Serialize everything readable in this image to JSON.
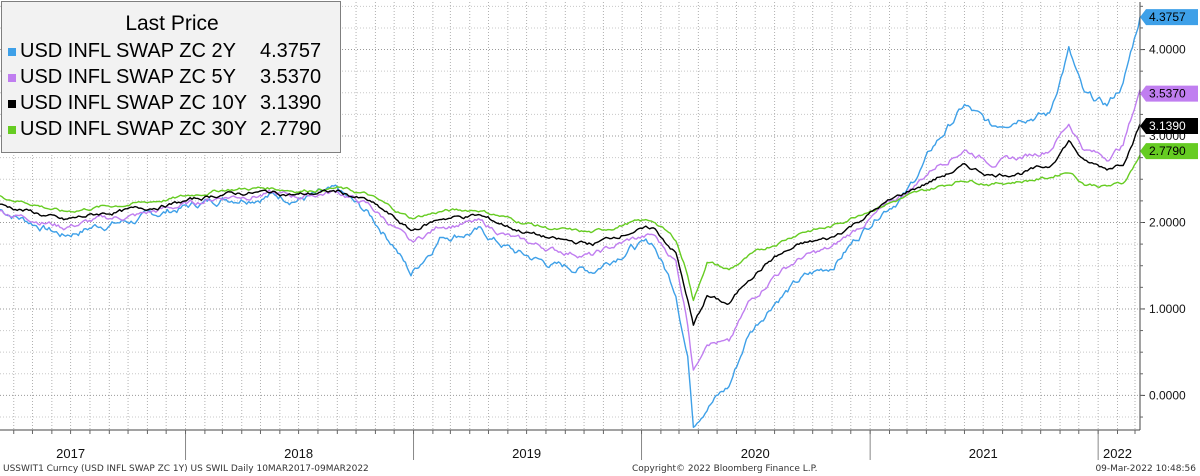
{
  "legend": {
    "title": "Last Price",
    "entries": [
      {
        "name": "USD INFL SWAP ZC 2Y",
        "value": "4.3757",
        "color": "#3ea0e8"
      },
      {
        "name": "USD INFL SWAP ZC 5Y",
        "value": "3.5370",
        "color": "#c07ef0"
      },
      {
        "name": "USD INFL SWAP ZC 10Y",
        "value": "3.1390",
        "color": "#000000"
      },
      {
        "name": "USD INFL SWAP ZC 30Y",
        "value": "2.7790",
        "color": "#66cc22"
      }
    ]
  },
  "footer": {
    "left": "USSWIT1 Curncy (USD INFL SWAP ZC 1Y) US SWIL  Daily 10MAR2017-09MAR2022",
    "center": "Copyright© 2022 Bloomberg Finance L.P.",
    "right": "09-Mar-2022 10:48:56"
  },
  "chart_data": {
    "type": "line",
    "x_range": [
      "2017-03-10",
      "2022-03-09"
    ],
    "ylim": [
      -0.4,
      4.55
    ],
    "y_axis_side": "right",
    "grid": true,
    "y_ticks": [
      0,
      1,
      2,
      3,
      4
    ],
    "y_tick_labels": [
      "0.0000",
      "1.0000",
      "2.0000",
      "3.0000",
      "4.0000"
    ],
    "x_tick_labels": [
      "2017",
      "2018",
      "2019",
      "2020",
      "2021",
      "2022"
    ],
    "x_tick_label_dates": [
      "2017-07-01",
      "2018-07-01",
      "2019-07-01",
      "2020-07-01",
      "2021-07-01",
      "2022-02-01"
    ],
    "year_boundaries": [
      "2018-01-01",
      "2019-01-01",
      "2020-01-01",
      "2021-01-01",
      "2022-01-01"
    ],
    "series": [
      {
        "name": "USD INFL SWAP ZC 2Y",
        "color": "#3ea0e8",
        "last_value": "4.3757",
        "points": [
          [
            "2017-03-10",
            2.15
          ],
          [
            "2017-05-01",
            2.0
          ],
          [
            "2017-06-20",
            1.85
          ],
          [
            "2017-08-15",
            1.97
          ],
          [
            "2017-10-15",
            2.03
          ],
          [
            "2017-12-15",
            2.15
          ],
          [
            "2018-03-01",
            2.28
          ],
          [
            "2018-05-15",
            2.32
          ],
          [
            "2018-07-01",
            2.28
          ],
          [
            "2018-09-01",
            2.35
          ],
          [
            "2018-10-20",
            2.1
          ],
          [
            "2018-12-01",
            1.75
          ],
          [
            "2018-12-28",
            1.4
          ],
          [
            "2019-02-15",
            1.85
          ],
          [
            "2019-04-15",
            1.9
          ],
          [
            "2019-06-15",
            1.65
          ],
          [
            "2019-08-15",
            1.5
          ],
          [
            "2019-10-15",
            1.45
          ],
          [
            "2019-12-15",
            1.72
          ],
          [
            "2020-01-20",
            1.75
          ],
          [
            "2020-02-25",
            1.2
          ],
          [
            "2020-03-15",
            0.45
          ],
          [
            "2020-03-24",
            -0.3
          ],
          [
            "2020-04-15",
            -0.1
          ],
          [
            "2020-05-20",
            0.1
          ],
          [
            "2020-06-20",
            0.7
          ],
          [
            "2020-08-01",
            1.1
          ],
          [
            "2020-09-15",
            1.35
          ],
          [
            "2020-11-01",
            1.5
          ],
          [
            "2020-12-20",
            1.9
          ],
          [
            "2021-01-20",
            2.15
          ],
          [
            "2021-03-01",
            2.35
          ],
          [
            "2021-04-15",
            2.9
          ],
          [
            "2021-06-01",
            3.35
          ],
          [
            "2021-07-15",
            3.1
          ],
          [
            "2021-09-01",
            3.25
          ],
          [
            "2021-10-15",
            3.25
          ],
          [
            "2021-11-15",
            4.0
          ],
          [
            "2021-12-10",
            3.45
          ],
          [
            "2022-01-15",
            3.35
          ],
          [
            "2022-02-10",
            3.6
          ],
          [
            "2022-03-09",
            4.3757
          ]
        ]
      },
      {
        "name": "USD INFL SWAP ZC 5Y",
        "color": "#c07ef0",
        "last_value": "3.5370",
        "points": [
          [
            "2017-03-10",
            2.12
          ],
          [
            "2017-05-01",
            2.05
          ],
          [
            "2017-06-20",
            1.95
          ],
          [
            "2017-08-15",
            2.03
          ],
          [
            "2017-10-15",
            2.08
          ],
          [
            "2017-12-15",
            2.18
          ],
          [
            "2018-03-01",
            2.3
          ],
          [
            "2018-05-15",
            2.33
          ],
          [
            "2018-07-01",
            2.3
          ],
          [
            "2018-09-01",
            2.36
          ],
          [
            "2018-10-20",
            2.2
          ],
          [
            "2018-12-01",
            1.95
          ],
          [
            "2018-12-28",
            1.75
          ],
          [
            "2019-02-15",
            1.97
          ],
          [
            "2019-04-15",
            2.0
          ],
          [
            "2019-06-15",
            1.8
          ],
          [
            "2019-08-15",
            1.68
          ],
          [
            "2019-10-15",
            1.62
          ],
          [
            "2019-12-15",
            1.8
          ],
          [
            "2020-01-20",
            1.85
          ],
          [
            "2020-02-25",
            1.55
          ],
          [
            "2020-03-15",
            0.85
          ],
          [
            "2020-03-24",
            0.3
          ],
          [
            "2020-04-15",
            0.65
          ],
          [
            "2020-05-20",
            0.6
          ],
          [
            "2020-06-20",
            1.05
          ],
          [
            "2020-08-01",
            1.4
          ],
          [
            "2020-09-15",
            1.6
          ],
          [
            "2020-11-01",
            1.7
          ],
          [
            "2020-12-20",
            1.98
          ],
          [
            "2021-01-20",
            2.15
          ],
          [
            "2021-03-01",
            2.35
          ],
          [
            "2021-04-15",
            2.65
          ],
          [
            "2021-06-01",
            2.85
          ],
          [
            "2021-07-15",
            2.7
          ],
          [
            "2021-09-01",
            2.75
          ],
          [
            "2021-10-15",
            2.85
          ],
          [
            "2021-11-15",
            3.15
          ],
          [
            "2021-12-10",
            2.85
          ],
          [
            "2022-01-15",
            2.75
          ],
          [
            "2022-02-10",
            2.9
          ],
          [
            "2022-03-09",
            3.537
          ]
        ]
      },
      {
        "name": "USD INFL SWAP ZC 10Y",
        "color": "#000000",
        "last_value": "3.1390",
        "points": [
          [
            "2017-03-10",
            2.2
          ],
          [
            "2017-05-01",
            2.12
          ],
          [
            "2017-06-20",
            2.02
          ],
          [
            "2017-08-15",
            2.1
          ],
          [
            "2017-10-15",
            2.15
          ],
          [
            "2017-12-15",
            2.22
          ],
          [
            "2018-03-01",
            2.33
          ],
          [
            "2018-05-15",
            2.35
          ],
          [
            "2018-07-01",
            2.32
          ],
          [
            "2018-09-01",
            2.36
          ],
          [
            "2018-10-20",
            2.25
          ],
          [
            "2018-12-01",
            2.05
          ],
          [
            "2018-12-28",
            1.9
          ],
          [
            "2019-02-15",
            2.05
          ],
          [
            "2019-04-15",
            2.08
          ],
          [
            "2019-06-15",
            1.92
          ],
          [
            "2019-08-15",
            1.8
          ],
          [
            "2019-10-15",
            1.75
          ],
          [
            "2019-12-15",
            1.9
          ],
          [
            "2020-01-20",
            1.93
          ],
          [
            "2020-02-25",
            1.65
          ],
          [
            "2020-03-15",
            1.1
          ],
          [
            "2020-03-24",
            0.8
          ],
          [
            "2020-04-15",
            1.15
          ],
          [
            "2020-05-20",
            1.05
          ],
          [
            "2020-06-20",
            1.35
          ],
          [
            "2020-08-01",
            1.6
          ],
          [
            "2020-09-15",
            1.75
          ],
          [
            "2020-11-01",
            1.82
          ],
          [
            "2020-12-20",
            2.05
          ],
          [
            "2021-01-20",
            2.2
          ],
          [
            "2021-03-01",
            2.35
          ],
          [
            "2021-04-15",
            2.5
          ],
          [
            "2021-06-01",
            2.65
          ],
          [
            "2021-07-15",
            2.55
          ],
          [
            "2021-09-01",
            2.58
          ],
          [
            "2021-10-15",
            2.65
          ],
          [
            "2021-11-15",
            2.95
          ],
          [
            "2021-12-10",
            2.7
          ],
          [
            "2022-01-15",
            2.62
          ],
          [
            "2022-02-10",
            2.7
          ],
          [
            "2022-03-09",
            3.139
          ]
        ]
      },
      {
        "name": "USD INFL SWAP ZC 30Y",
        "color": "#66cc22",
        "last_value": "2.7790",
        "points": [
          [
            "2017-03-10",
            2.3
          ],
          [
            "2017-05-01",
            2.22
          ],
          [
            "2017-06-20",
            2.12
          ],
          [
            "2017-08-15",
            2.18
          ],
          [
            "2017-10-15",
            2.22
          ],
          [
            "2017-12-15",
            2.28
          ],
          [
            "2018-03-01",
            2.38
          ],
          [
            "2018-05-15",
            2.4
          ],
          [
            "2018-07-01",
            2.37
          ],
          [
            "2018-09-01",
            2.4
          ],
          [
            "2018-10-20",
            2.32
          ],
          [
            "2018-12-01",
            2.15
          ],
          [
            "2018-12-28",
            2.05
          ],
          [
            "2019-02-15",
            2.13
          ],
          [
            "2019-04-15",
            2.15
          ],
          [
            "2019-06-15",
            2.02
          ],
          [
            "2019-08-15",
            1.92
          ],
          [
            "2019-10-15",
            1.88
          ],
          [
            "2019-12-15",
            2.0
          ],
          [
            "2020-01-20",
            2.02
          ],
          [
            "2020-02-25",
            1.8
          ],
          [
            "2020-03-15",
            1.4
          ],
          [
            "2020-03-24",
            1.1
          ],
          [
            "2020-04-15",
            1.55
          ],
          [
            "2020-05-20",
            1.45
          ],
          [
            "2020-06-20",
            1.6
          ],
          [
            "2020-08-01",
            1.75
          ],
          [
            "2020-09-15",
            1.9
          ],
          [
            "2020-11-01",
            1.95
          ],
          [
            "2020-12-20",
            2.12
          ],
          [
            "2021-01-20",
            2.2
          ],
          [
            "2021-03-01",
            2.3
          ],
          [
            "2021-04-15",
            2.4
          ],
          [
            "2021-06-01",
            2.5
          ],
          [
            "2021-07-15",
            2.45
          ],
          [
            "2021-09-01",
            2.48
          ],
          [
            "2021-10-15",
            2.52
          ],
          [
            "2021-11-15",
            2.6
          ],
          [
            "2021-12-10",
            2.45
          ],
          [
            "2022-01-15",
            2.42
          ],
          [
            "2022-02-10",
            2.45
          ],
          [
            "2022-03-09",
            2.779
          ]
        ]
      }
    ]
  }
}
